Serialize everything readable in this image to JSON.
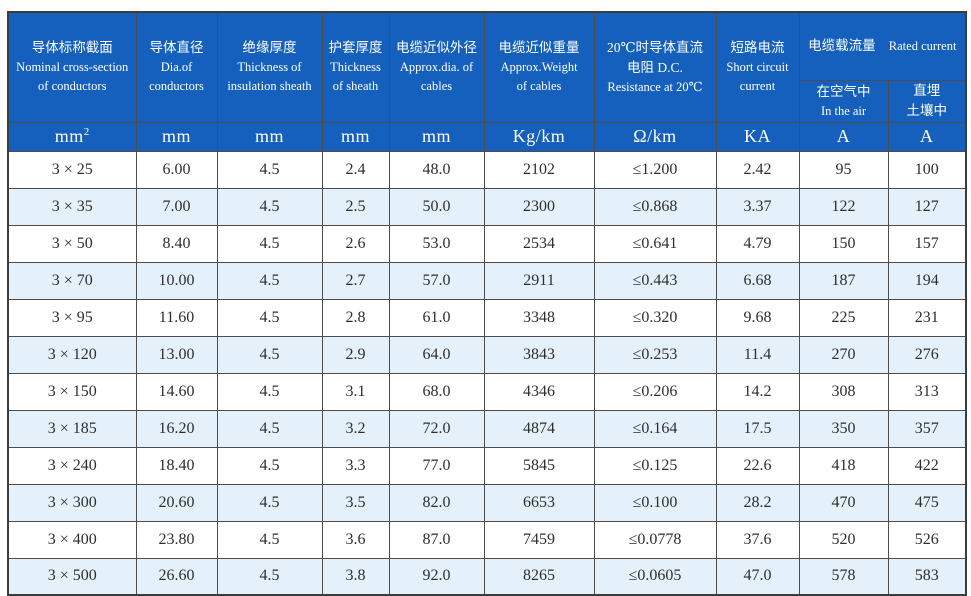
{
  "colors": {
    "header_bg": "#1560bd",
    "header_text": "#ffffff",
    "row_bg": "#ffffff",
    "row_alt_bg": "#e4f1fa",
    "border": "#4d4d4d",
    "body_text": "#2e2e2e"
  },
  "table": {
    "header": {
      "cols": [
        {
          "lines": [
            "导体标称截面",
            "Nominal cross-section",
            "of conductors"
          ]
        },
        {
          "lines": [
            "导体直径",
            "Dia.of",
            "conductors"
          ]
        },
        {
          "lines": [
            "绝缘厚度",
            "Thickness of",
            "insulation sheath"
          ]
        },
        {
          "lines": [
            "护套厚度",
            "Thickness",
            "of sheath"
          ]
        },
        {
          "lines": [
            "电缆近似外径",
            "Approx.dia. of",
            "cables"
          ]
        },
        {
          "lines": [
            "电缆近似重量",
            "Approx.Weight",
            "of cables"
          ]
        },
        {
          "lines": [
            "20℃时导体直流",
            "电阻 D.C.",
            "Resistance at 20℃"
          ]
        },
        {
          "lines": [
            "短路电流",
            "Short circuit",
            "current"
          ]
        }
      ],
      "group": {
        "zh": "电缆载流量",
        "en": "Rated current"
      },
      "sub": [
        {
          "lines": [
            "在空气中",
            "In the air"
          ]
        },
        {
          "lines": [
            "直埋",
            "土壤中"
          ]
        }
      ]
    },
    "units": [
      "mm²",
      "mm",
      "mm",
      "mm",
      "mm",
      "Kg/km",
      "Ω/km",
      "KA",
      "A",
      "A"
    ],
    "rows": [
      [
        "3 × 25",
        "6.00",
        "4.5",
        "2.4",
        "48.0",
        "2102",
        "≤1.200",
        "2.42",
        "95",
        "100"
      ],
      [
        "3 × 35",
        "7.00",
        "4.5",
        "2.5",
        "50.0",
        "2300",
        "≤0.868",
        "3.37",
        "122",
        "127"
      ],
      [
        "3 × 50",
        "8.40",
        "4.5",
        "2.6",
        "53.0",
        "2534",
        "≤0.641",
        "4.79",
        "150",
        "157"
      ],
      [
        "3 × 70",
        "10.00",
        "4.5",
        "2.7",
        "57.0",
        "2911",
        "≤0.443",
        "6.68",
        "187",
        "194"
      ],
      [
        "3 × 95",
        "11.60",
        "4.5",
        "2.8",
        "61.0",
        "3348",
        "≤0.320",
        "9.68",
        "225",
        "231"
      ],
      [
        "3 × 120",
        "13.00",
        "4.5",
        "2.9",
        "64.0",
        "3843",
        "≤0.253",
        "11.4",
        "270",
        "276"
      ],
      [
        "3 × 150",
        "14.60",
        "4.5",
        "3.1",
        "68.0",
        "4346",
        "≤0.206",
        "14.2",
        "308",
        "313"
      ],
      [
        "3 × 185",
        "16.20",
        "4.5",
        "3.2",
        "72.0",
        "4874",
        "≤0.164",
        "17.5",
        "350",
        "357"
      ],
      [
        "3 × 240",
        "18.40",
        "4.5",
        "3.3",
        "77.0",
        "5845",
        "≤0.125",
        "22.6",
        "418",
        "422"
      ],
      [
        "3 × 300",
        "20.60",
        "4.5",
        "3.5",
        "82.0",
        "6653",
        "≤0.100",
        "28.2",
        "470",
        "475"
      ],
      [
        "3 × 400",
        "23.80",
        "4.5",
        "3.6",
        "87.0",
        "7459",
        "≤0.0778",
        "37.6",
        "520",
        "526"
      ],
      [
        "3 × 500",
        "26.60",
        "4.5",
        "3.8",
        "92.0",
        "8265",
        "≤0.0605",
        "47.0",
        "578",
        "583"
      ]
    ]
  }
}
